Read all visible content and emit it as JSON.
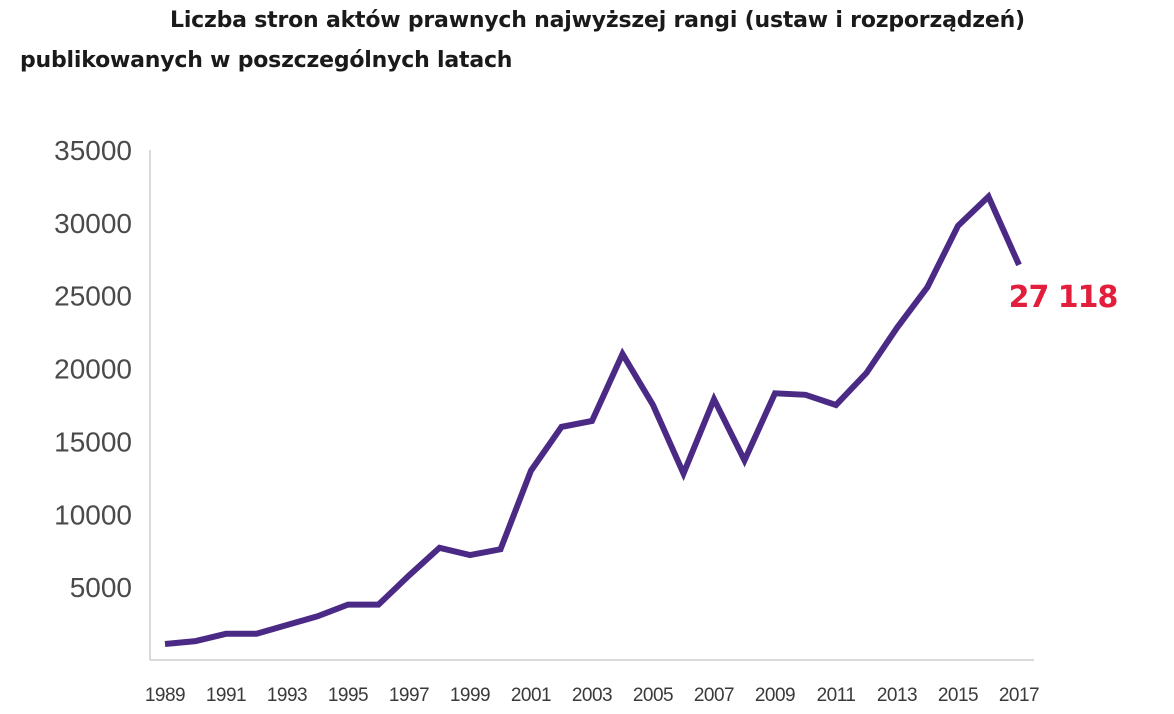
{
  "chart_data": {
    "type": "line",
    "title_line_1": "Liczba stron aktów prawnych najwyższej rangi (ustaw i rozporządzeń)",
    "title_line_2": "publikowanych w poszczególnych latach",
    "xlabel": "",
    "ylabel": "",
    "ylim": [
      0,
      35000
    ],
    "xlim": [
      1989,
      2017
    ],
    "y_ticks": [
      5000,
      10000,
      15000,
      20000,
      25000,
      30000,
      35000
    ],
    "x_ticks": [
      "1989",
      "1991",
      "1993",
      "1995",
      "1997",
      "1999",
      "2001",
      "2003",
      "2005",
      "2007",
      "2009",
      "2011",
      "2013",
      "2015",
      "2017"
    ],
    "grid": false,
    "series": [
      {
        "color": "#4b2a86",
        "x": [
          1989,
          1990,
          1991,
          1992,
          1993,
          1994,
          1995,
          1996,
          1997,
          1998,
          1999,
          2000,
          2001,
          2002,
          2003,
          2004,
          2005,
          2006,
          2007,
          2008,
          2009,
          2010,
          2011,
          2012,
          2013,
          2014,
          2015,
          2016,
          2017
        ],
        "values": [
          1100,
          1300,
          1800,
          1800,
          2400,
          3000,
          3800,
          3800,
          5800,
          7700,
          7200,
          7600,
          13000,
          16000,
          16400,
          21000,
          17500,
          12800,
          17900,
          13700,
          18300,
          18200,
          17500,
          19700,
          22800,
          25600,
          29800,
          31800,
          27118
        ]
      }
    ],
    "annotations": [
      {
        "text": "27 118",
        "x": 2017,
        "y": 27118,
        "color": "#e31e3c"
      }
    ]
  }
}
